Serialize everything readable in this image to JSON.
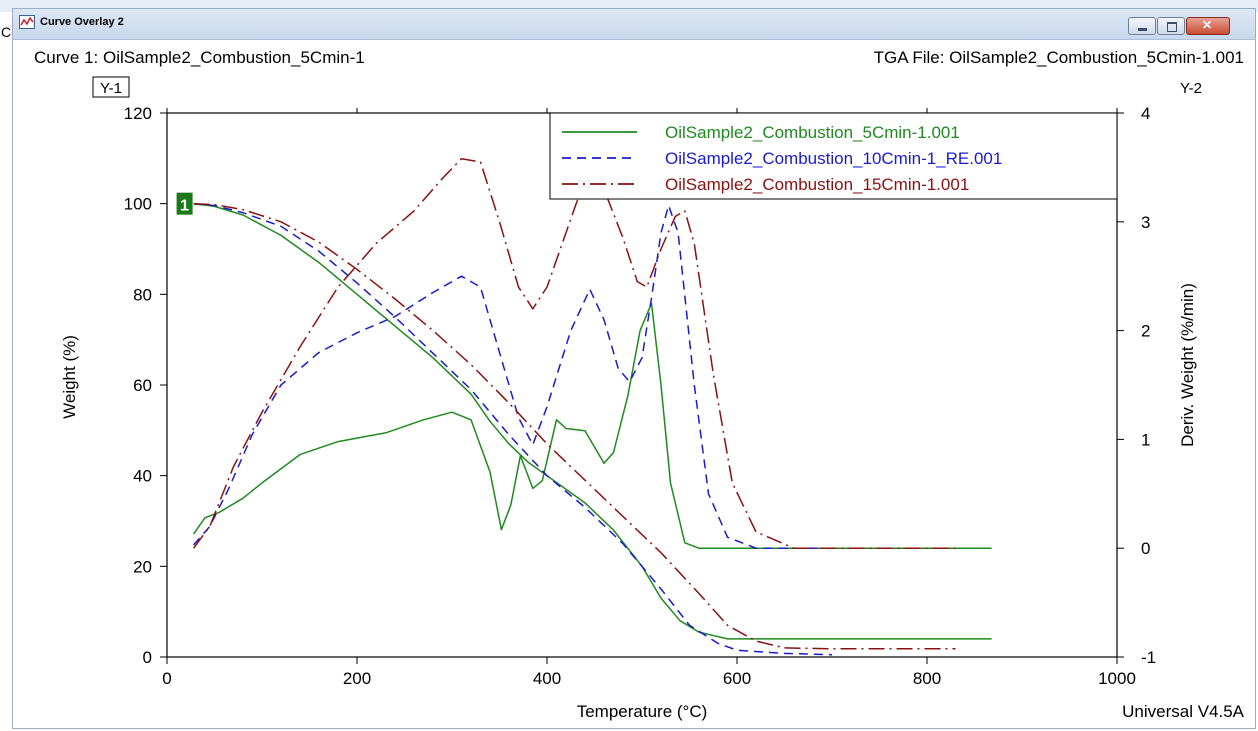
{
  "window": {
    "title": "Curve Overlay 2",
    "left_edge_char": "C",
    "curve_label": "Curve 1: OilSample2_Combustion_5Cmin-1",
    "file_label": "TGA File: OilSample2_Combustion_5Cmin-1.001",
    "version": "Universal V4.5A",
    "curve_marker": "1"
  },
  "chart_data": {
    "type": "line",
    "xlabel": "Temperature (°C)",
    "ylabel": "Weight (%)",
    "y2label": "Deriv. Weight (%/min)",
    "y1_tag": "Y-1",
    "y2_tag": "Y-2",
    "xlim": [
      0,
      1000
    ],
    "ylim": [
      0,
      120
    ],
    "y2lim": [
      -1,
      4
    ],
    "xticks": [
      "0",
      "200",
      "400",
      "600",
      "800",
      "1000"
    ],
    "yticks": [
      "0",
      "20",
      "40",
      "60",
      "80",
      "100",
      "120"
    ],
    "y2ticks": [
      "-1",
      "0",
      "1",
      "2",
      "3",
      "4"
    ],
    "legend_position": "top-right",
    "series": [
      {
        "name": "OilSample2_Combustion_5Cmin-1.001",
        "color": "#1f8a1f",
        "dash": "solid",
        "weight": [
          [
            28,
            100
          ],
          [
            50,
            99.4
          ],
          [
            80,
            97.5
          ],
          [
            120,
            93
          ],
          [
            160,
            87
          ],
          [
            200,
            80
          ],
          [
            240,
            73
          ],
          [
            280,
            66
          ],
          [
            320,
            58
          ],
          [
            340,
            52
          ],
          [
            360,
            47
          ],
          [
            380,
            43
          ],
          [
            400,
            40
          ],
          [
            440,
            34
          ],
          [
            470,
            28
          ],
          [
            500,
            20
          ],
          [
            520,
            13
          ],
          [
            540,
            8
          ],
          [
            560,
            5.5
          ],
          [
            590,
            4
          ],
          [
            700,
            4
          ],
          [
            868,
            4
          ]
        ],
        "deriv": [
          [
            28,
            0.13
          ],
          [
            40,
            0.28
          ],
          [
            55,
            0.33
          ],
          [
            80,
            0.46
          ],
          [
            100,
            0.6
          ],
          [
            140,
            0.86
          ],
          [
            180,
            0.98
          ],
          [
            230,
            1.06
          ],
          [
            270,
            1.18
          ],
          [
            300,
            1.25
          ],
          [
            320,
            1.18
          ],
          [
            340,
            0.7
          ],
          [
            352,
            0.17
          ],
          [
            362,
            0.4
          ],
          [
            372,
            0.85
          ],
          [
            385,
            0.55
          ],
          [
            395,
            0.62
          ],
          [
            410,
            1.18
          ],
          [
            420,
            1.1
          ],
          [
            440,
            1.08
          ],
          [
            460,
            0.78
          ],
          [
            470,
            0.88
          ],
          [
            485,
            1.4
          ],
          [
            498,
            2.0
          ],
          [
            510,
            2.25
          ],
          [
            520,
            1.5
          ],
          [
            530,
            0.6
          ],
          [
            545,
            0.05
          ],
          [
            560,
            0.0
          ],
          [
            700,
            0.0
          ],
          [
            868,
            0.0
          ]
        ]
      },
      {
        "name": "OilSample2_Combustion_10Cmin-1_RE.001",
        "color": "#1a1ad0",
        "dash": "dashed",
        "weight": [
          [
            28,
            100
          ],
          [
            50,
            99.6
          ],
          [
            80,
            98
          ],
          [
            120,
            95
          ],
          [
            160,
            89.5
          ],
          [
            200,
            82.5
          ],
          [
            240,
            75
          ],
          [
            280,
            67
          ],
          [
            320,
            59
          ],
          [
            360,
            49
          ],
          [
            400,
            40
          ],
          [
            440,
            33
          ],
          [
            480,
            25
          ],
          [
            520,
            15
          ],
          [
            550,
            7
          ],
          [
            580,
            3
          ],
          [
            600,
            1.5
          ],
          [
            650,
            0.8
          ],
          [
            700,
            0.5
          ]
        ],
        "deriv": [
          [
            28,
            0.03
          ],
          [
            45,
            0.2
          ],
          [
            65,
            0.55
          ],
          [
            90,
            1.05
          ],
          [
            120,
            1.5
          ],
          [
            160,
            1.8
          ],
          [
            200,
            1.98
          ],
          [
            240,
            2.13
          ],
          [
            280,
            2.35
          ],
          [
            310,
            2.5
          ],
          [
            330,
            2.4
          ],
          [
            350,
            1.8
          ],
          [
            370,
            1.2
          ],
          [
            385,
            0.95
          ],
          [
            400,
            1.3
          ],
          [
            425,
            2.0
          ],
          [
            445,
            2.38
          ],
          [
            460,
            2.1
          ],
          [
            475,
            1.65
          ],
          [
            487,
            1.53
          ],
          [
            500,
            1.75
          ],
          [
            510,
            2.3
          ],
          [
            520,
            2.9
          ],
          [
            528,
            3.15
          ],
          [
            538,
            2.9
          ],
          [
            555,
            1.5
          ],
          [
            570,
            0.5
          ],
          [
            590,
            0.1
          ],
          [
            620,
            0.0
          ],
          [
            700,
            0.0
          ]
        ]
      },
      {
        "name": "OilSample2_Combustion_15Cmin-1.001",
        "color": "#8b1111",
        "dash": "dashdot",
        "weight": [
          [
            28,
            100
          ],
          [
            50,
            99.8
          ],
          [
            80,
            98.7
          ],
          [
            120,
            96
          ],
          [
            160,
            91.5
          ],
          [
            200,
            85.5
          ],
          [
            240,
            79
          ],
          [
            280,
            72
          ],
          [
            320,
            64.5
          ],
          [
            360,
            56
          ],
          [
            400,
            47
          ],
          [
            440,
            39
          ],
          [
            480,
            31
          ],
          [
            520,
            23
          ],
          [
            560,
            14
          ],
          [
            590,
            7
          ],
          [
            620,
            3.5
          ],
          [
            650,
            2
          ],
          [
            700,
            1.8
          ],
          [
            830,
            1.8
          ]
        ],
        "deriv": [
          [
            28,
            0.0
          ],
          [
            45,
            0.2
          ],
          [
            70,
            0.75
          ],
          [
            100,
            1.25
          ],
          [
            140,
            1.85
          ],
          [
            180,
            2.4
          ],
          [
            220,
            2.8
          ],
          [
            260,
            3.1
          ],
          [
            290,
            3.4
          ],
          [
            310,
            3.58
          ],
          [
            330,
            3.55
          ],
          [
            350,
            3.0
          ],
          [
            370,
            2.4
          ],
          [
            385,
            2.2
          ],
          [
            400,
            2.4
          ],
          [
            430,
            3.15
          ],
          [
            445,
            3.5
          ],
          [
            460,
            3.3
          ],
          [
            480,
            2.85
          ],
          [
            495,
            2.45
          ],
          [
            505,
            2.4
          ],
          [
            520,
            2.75
          ],
          [
            535,
            3.05
          ],
          [
            545,
            3.1
          ],
          [
            555,
            2.8
          ],
          [
            575,
            1.6
          ],
          [
            595,
            0.6
          ],
          [
            620,
            0.15
          ],
          [
            660,
            0.0
          ],
          [
            700,
            0.0
          ],
          [
            830,
            0.0
          ]
        ]
      }
    ]
  }
}
